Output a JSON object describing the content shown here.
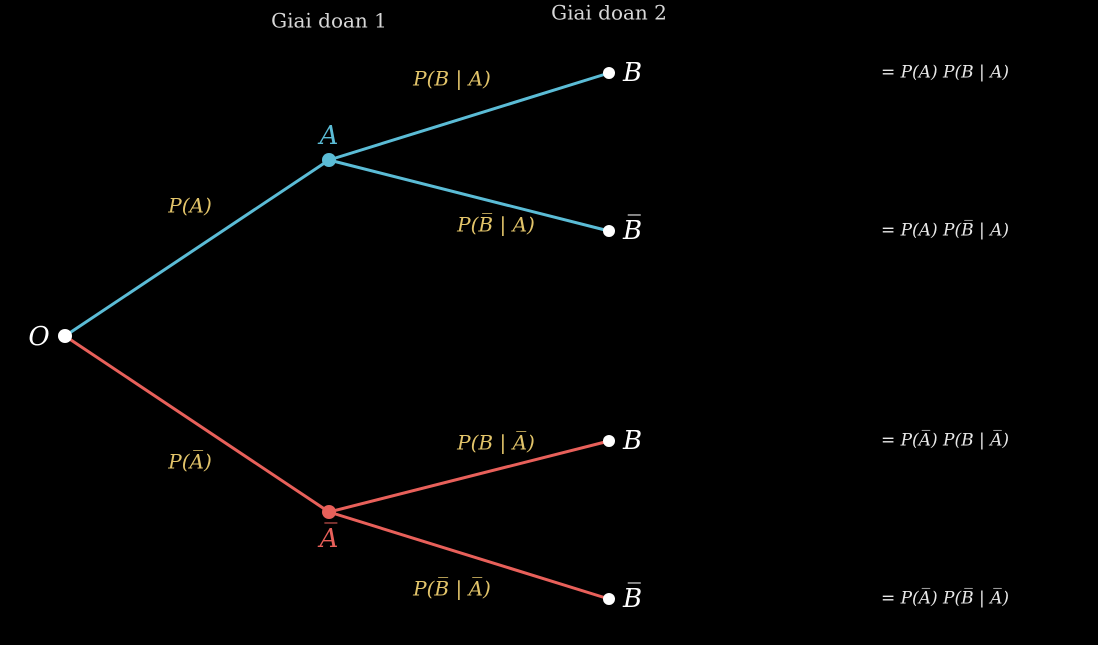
{
  "stages": [
    "Giai doan 1",
    "Giai doan 2"
  ],
  "nodes": [
    {
      "label": "O"
    },
    {
      "label": "A"
    },
    {
      "label": "A̅"
    },
    {
      "label": "B"
    },
    {
      "label": "B̅"
    },
    {
      "label": "B"
    },
    {
      "label": "B̅"
    }
  ],
  "edges": [
    {
      "label": "P(A)"
    },
    {
      "label": "P(A̅)"
    },
    {
      "label": "P(B | A)"
    },
    {
      "label": "P(B̅ | A)"
    },
    {
      "label": "P(B | A̅)"
    },
    {
      "label": "P(B̅ | A̅)"
    }
  ],
  "results": [
    "= P(A) P(B | A)",
    "= P(A) P(B̅ | A)",
    "= P(A̅) P(B | A̅)",
    "= P(A̅) P(B̅ | A̅)"
  ]
}
